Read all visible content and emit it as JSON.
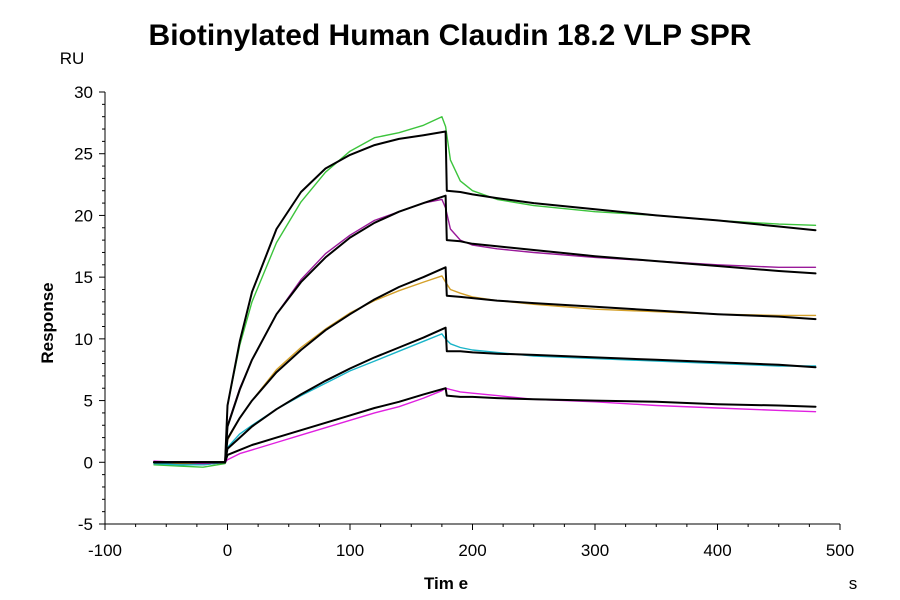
{
  "chart_data": {
    "type": "line",
    "title": "Biotinylated Human Claudin 18.2 VLP SPR",
    "xlabel": "Tim e",
    "ylabel": "Response",
    "x_unit": "s",
    "y_unit": "RU",
    "xlim": [
      -100,
      500
    ],
    "ylim": [
      -5,
      30
    ],
    "x_ticks": [
      "-100",
      "0",
      "100",
      "200",
      "300",
      "400",
      "500"
    ],
    "y_ticks": [
      "-5",
      "0",
      "5",
      "10",
      "15",
      "20",
      "25",
      "30"
    ],
    "grid": false,
    "legend": "none",
    "injection_start": 0,
    "injection_end": 178,
    "series": [
      {
        "kind": "measured",
        "color": "#3cc43c",
        "x": [
          -60,
          -40,
          -20,
          -2,
          0,
          10,
          20,
          40,
          60,
          80,
          100,
          120,
          140,
          160,
          175,
          178,
          182,
          190,
          200,
          220,
          250,
          300,
          350,
          400,
          450,
          480
        ],
        "y": [
          -0.2,
          -0.3,
          -0.4,
          -0.1,
          4.6,
          9.5,
          13.0,
          17.8,
          21.1,
          23.5,
          25.2,
          26.3,
          26.7,
          27.3,
          28.0,
          27.2,
          24.5,
          22.8,
          22.0,
          21.3,
          20.8,
          20.3,
          20.0,
          19.6,
          19.3,
          19.2
        ]
      },
      {
        "kind": "measured",
        "color": "#9a1a9a",
        "x": [
          -60,
          -40,
          -20,
          -2,
          0,
          10,
          20,
          40,
          60,
          80,
          100,
          120,
          140,
          160,
          175,
          178,
          182,
          190,
          200,
          220,
          250,
          300,
          350,
          400,
          450,
          480
        ],
        "y": [
          0.0,
          -0.1,
          -0.2,
          0.0,
          3.0,
          6.0,
          8.3,
          12.0,
          14.8,
          16.9,
          18.4,
          19.6,
          20.3,
          21.0,
          21.3,
          20.6,
          18.9,
          18.0,
          17.6,
          17.3,
          17.0,
          16.6,
          16.3,
          16.0,
          15.8,
          15.8
        ]
      },
      {
        "kind": "measured",
        "color": "#d4a02a",
        "x": [
          -60,
          -40,
          -20,
          -2,
          0,
          10,
          20,
          40,
          60,
          80,
          100,
          120,
          140,
          160,
          175,
          178,
          182,
          190,
          200,
          220,
          250,
          300,
          350,
          400,
          450,
          480
        ],
        "y": [
          0.0,
          -0.1,
          -0.1,
          0.0,
          1.8,
          3.6,
          5.0,
          7.5,
          9.3,
          10.8,
          12.1,
          13.1,
          13.9,
          14.6,
          15.1,
          14.6,
          14.0,
          13.7,
          13.4,
          13.1,
          12.8,
          12.4,
          12.2,
          12.0,
          11.9,
          11.9
        ]
      },
      {
        "kind": "measured",
        "color": "#1ab4c8",
        "x": [
          -60,
          -40,
          -20,
          -2,
          0,
          10,
          20,
          40,
          60,
          80,
          100,
          120,
          140,
          160,
          175,
          178,
          182,
          190,
          200,
          220,
          250,
          300,
          350,
          400,
          450,
          480
        ],
        "y": [
          -0.1,
          -0.2,
          -0.2,
          0.0,
          1.2,
          2.3,
          3.0,
          4.3,
          5.4,
          6.4,
          7.4,
          8.2,
          9.0,
          9.8,
          10.4,
          10.0,
          9.6,
          9.3,
          9.1,
          8.9,
          8.6,
          8.4,
          8.2,
          8.0,
          7.8,
          7.8
        ]
      },
      {
        "kind": "measured",
        "color": "#e020e0",
        "x": [
          -60,
          -40,
          -20,
          -2,
          0,
          10,
          20,
          40,
          60,
          80,
          100,
          120,
          140,
          160,
          175,
          178,
          182,
          190,
          200,
          220,
          250,
          300,
          350,
          400,
          450,
          480
        ],
        "y": [
          0.1,
          0.0,
          -0.1,
          0.0,
          0.2,
          0.7,
          1.0,
          1.6,
          2.2,
          2.8,
          3.4,
          4.0,
          4.5,
          5.2,
          5.8,
          6.0,
          5.9,
          5.7,
          5.6,
          5.4,
          5.1,
          4.9,
          4.6,
          4.4,
          4.2,
          4.1
        ]
      },
      {
        "kind": "fit",
        "color": "#000000",
        "x": [
          -60,
          -40,
          -20,
          -2,
          0,
          10,
          20,
          40,
          60,
          80,
          100,
          120,
          140,
          160,
          178,
          179,
          190,
          200,
          220,
          250,
          300,
          350,
          400,
          450,
          480
        ],
        "y": [
          0.0,
          0.0,
          0.0,
          0.0,
          4.6,
          9.8,
          13.8,
          18.9,
          21.9,
          23.8,
          24.9,
          25.7,
          26.2,
          26.5,
          26.8,
          22.0,
          21.9,
          21.7,
          21.4,
          21.0,
          20.5,
          20.0,
          19.6,
          19.1,
          18.8
        ]
      },
      {
        "kind": "fit",
        "color": "#000000",
        "x": [
          -60,
          -40,
          -20,
          -2,
          0,
          10,
          20,
          40,
          60,
          80,
          100,
          120,
          140,
          160,
          178,
          179,
          190,
          200,
          220,
          250,
          300,
          350,
          400,
          450,
          480
        ],
        "y": [
          0.0,
          0.0,
          0.0,
          0.0,
          2.9,
          5.9,
          8.3,
          12.0,
          14.6,
          16.6,
          18.2,
          19.4,
          20.3,
          21.0,
          21.6,
          18.0,
          17.9,
          17.7,
          17.5,
          17.2,
          16.7,
          16.3,
          15.9,
          15.5,
          15.3
        ]
      },
      {
        "kind": "fit",
        "color": "#000000",
        "x": [
          -60,
          -40,
          -20,
          -2,
          0,
          10,
          20,
          40,
          60,
          80,
          100,
          120,
          140,
          160,
          178,
          179,
          190,
          200,
          220,
          250,
          300,
          350,
          400,
          450,
          480
        ],
        "y": [
          0.0,
          0.0,
          0.0,
          0.0,
          1.9,
          3.6,
          5.0,
          7.3,
          9.1,
          10.7,
          12.0,
          13.2,
          14.2,
          15.0,
          15.8,
          13.5,
          13.4,
          13.3,
          13.1,
          12.9,
          12.6,
          12.3,
          12.0,
          11.8,
          11.6
        ]
      },
      {
        "kind": "fit",
        "color": "#000000",
        "x": [
          -60,
          -40,
          -20,
          -2,
          0,
          10,
          20,
          40,
          60,
          80,
          100,
          120,
          140,
          160,
          178,
          179,
          190,
          200,
          220,
          250,
          300,
          350,
          400,
          450,
          480
        ],
        "y": [
          0.0,
          0.0,
          0.0,
          0.0,
          1.1,
          2.0,
          2.9,
          4.3,
          5.5,
          6.6,
          7.6,
          8.5,
          9.3,
          10.1,
          10.9,
          9.0,
          9.0,
          8.9,
          8.8,
          8.7,
          8.5,
          8.3,
          8.1,
          7.9,
          7.7
        ]
      },
      {
        "kind": "fit",
        "color": "#000000",
        "x": [
          -60,
          -40,
          -20,
          -2,
          0,
          10,
          20,
          40,
          60,
          80,
          100,
          120,
          140,
          160,
          178,
          179,
          190,
          200,
          220,
          250,
          300,
          350,
          400,
          450,
          480
        ],
        "y": [
          0.0,
          0.0,
          0.0,
          0.0,
          0.6,
          1.0,
          1.4,
          2.0,
          2.6,
          3.2,
          3.8,
          4.4,
          4.9,
          5.5,
          6.0,
          5.4,
          5.3,
          5.3,
          5.2,
          5.1,
          5.0,
          4.9,
          4.7,
          4.6,
          4.5
        ]
      }
    ]
  }
}
